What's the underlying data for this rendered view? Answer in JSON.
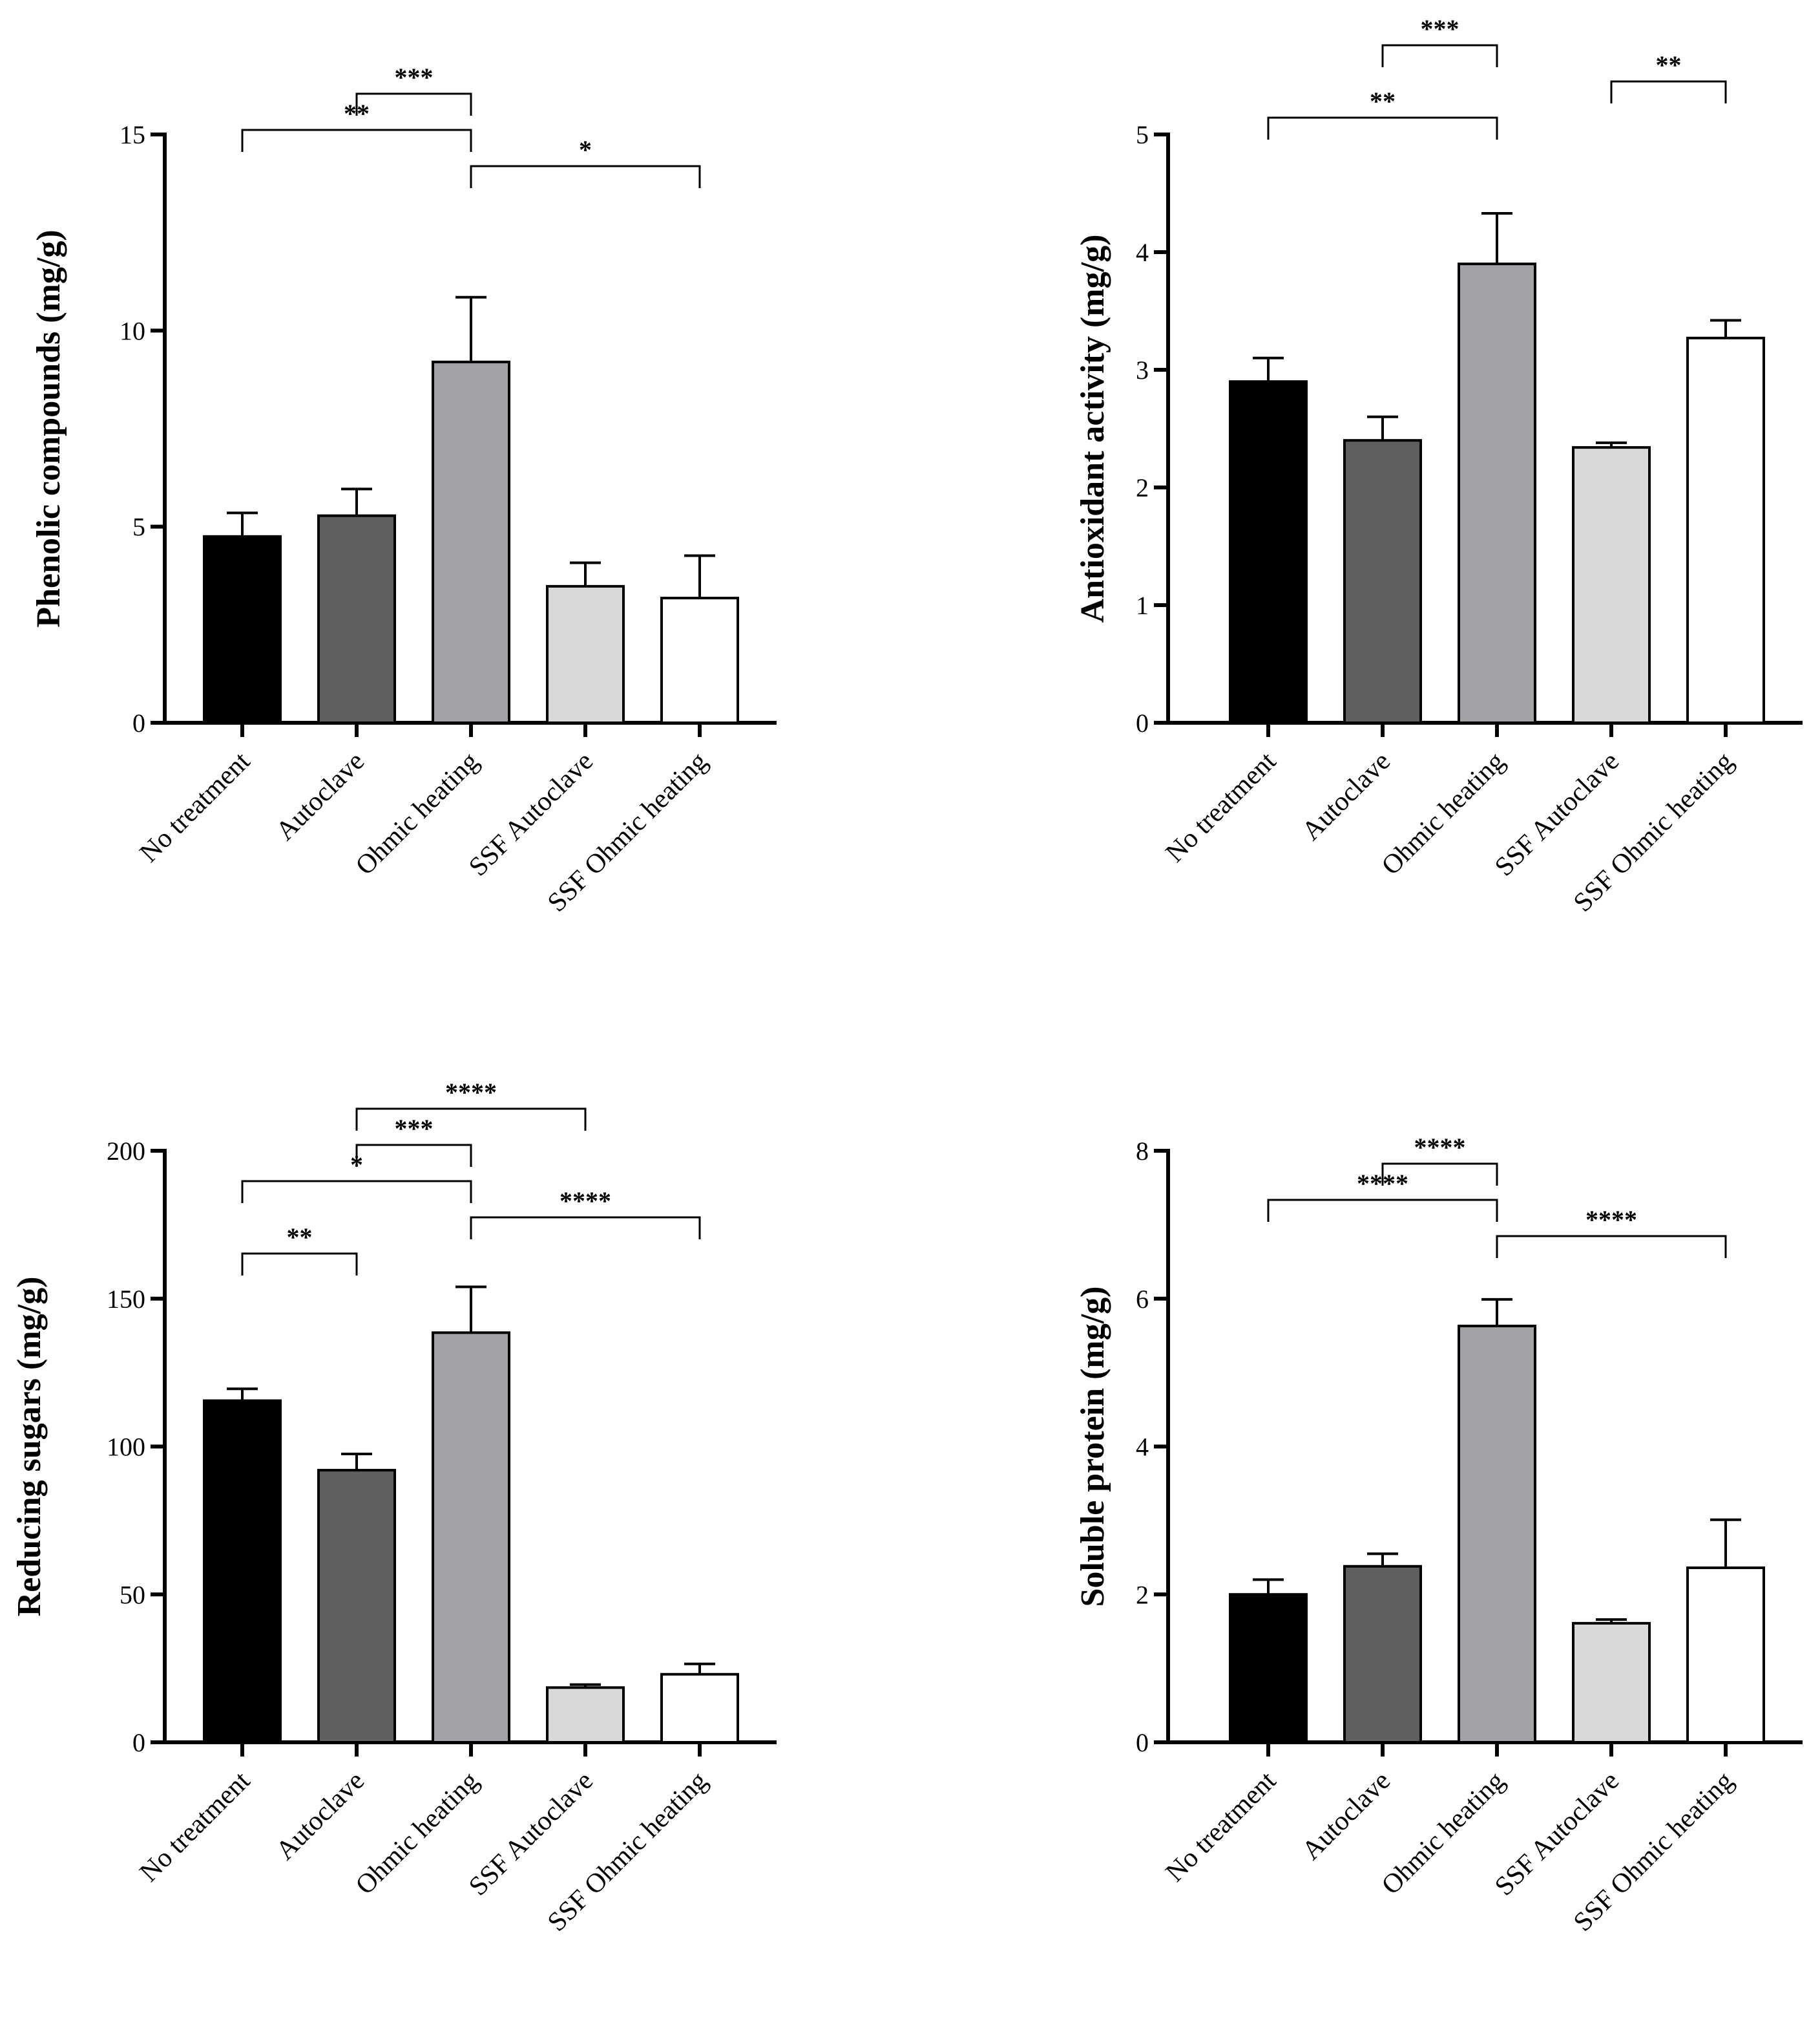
{
  "colors": {
    "bars": [
      "#000000",
      "#5f5f5f",
      "#a3a2a7",
      "#d9d9d9",
      "#ffffff"
    ],
    "stroke": "#000000"
  },
  "chart_data": [
    {
      "type": "bar",
      "id": "phenolic",
      "categories": [
        "No treatment",
        "Autoclave",
        "Ohmic heating",
        "SSF Autoclave",
        "SSF Ohmic heating"
      ],
      "values": [
        4.75,
        5.28,
        9.2,
        3.48,
        3.18
      ],
      "errors": [
        0.6,
        0.68,
        1.65,
        0.6,
        1.08
      ],
      "ylabel": "Phenolic compounds (mg/g)",
      "ylim": [
        0,
        15
      ],
      "yticks": [
        0,
        5,
        10,
        15
      ],
      "significance": [
        {
          "from": 1,
          "to": 2,
          "label": "***"
        },
        {
          "from": 0,
          "to": 2,
          "label": "**"
        },
        {
          "from": 2,
          "to": 4,
          "label": "*"
        }
      ]
    },
    {
      "type": "bar",
      "id": "antioxidant",
      "categories": [
        "No treatment",
        "Autoclave",
        "Ohmic heating",
        "SSF Autoclave",
        "SSF Ohmic heating"
      ],
      "values": [
        2.9,
        2.4,
        3.9,
        2.34,
        3.27
      ],
      "errors": [
        0.2,
        0.2,
        0.43,
        0.04,
        0.15
      ],
      "ylabel": "Antioxidant activity (mg/g)",
      "ylim": [
        0,
        5
      ],
      "yticks": [
        0,
        1,
        2,
        3,
        4,
        5
      ],
      "significance": [
        {
          "from": 1,
          "to": 2,
          "label": "***"
        },
        {
          "from": 3,
          "to": 4,
          "label": "**"
        },
        {
          "from": 0,
          "to": 2,
          "label": "**"
        }
      ]
    },
    {
      "type": "bar",
      "id": "reducing-sugars",
      "categories": [
        "No treatment",
        "Autoclave",
        "Ohmic heating",
        "SSF Autoclave",
        "SSF Ohmic heating"
      ],
      "values": [
        115.5,
        92,
        138.5,
        18.5,
        23
      ],
      "errors": [
        4,
        5.5,
        15.5,
        1,
        3.5
      ],
      "ylabel": "Reducing sugars (mg/g)",
      "ylim": [
        0,
        200
      ],
      "yticks": [
        0,
        50,
        100,
        150,
        200
      ],
      "significance": [
        {
          "from": 1,
          "to": 3,
          "label": "****"
        },
        {
          "from": 1,
          "to": 2,
          "label": "***"
        },
        {
          "from": 0,
          "to": 2,
          "label": "*"
        },
        {
          "from": 2,
          "to": 4,
          "label": "****"
        },
        {
          "from": 0,
          "to": 1,
          "label": "**"
        }
      ]
    },
    {
      "type": "bar",
      "id": "soluble-protein",
      "categories": [
        "No treatment",
        "Autoclave",
        "Ohmic heating",
        "SSF Autoclave",
        "SSF Ohmic heating"
      ],
      "values": [
        2.0,
        2.38,
        5.63,
        1.61,
        2.36
      ],
      "errors": [
        0.2,
        0.17,
        0.36,
        0.05,
        0.65
      ],
      "ylabel": "Soluble protein (mg/g)",
      "ylim": [
        0,
        8
      ],
      "yticks": [
        0,
        2,
        4,
        6,
        8
      ],
      "significance": [
        {
          "from": 1,
          "to": 2,
          "label": "****"
        },
        {
          "from": 0,
          "to": 2,
          "label": "****"
        },
        {
          "from": 2,
          "to": 4,
          "label": "****"
        }
      ]
    }
  ]
}
